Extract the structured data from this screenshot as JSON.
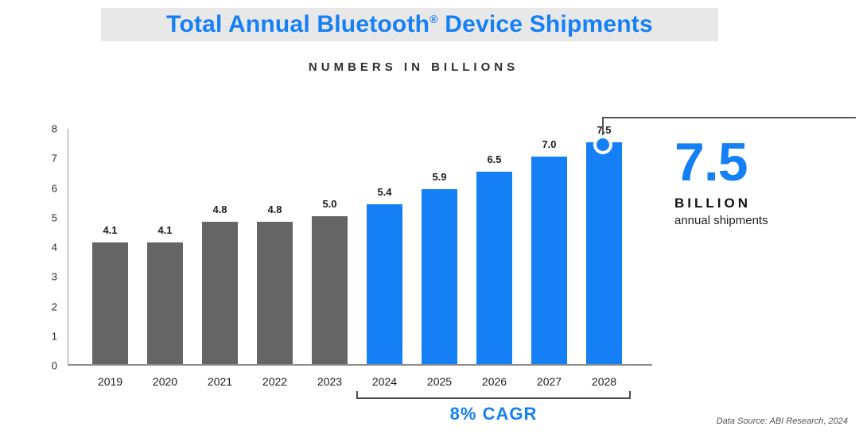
{
  "header": {
    "title_pre": "Total Annual Bluetooth",
    "title_sup": "®",
    "title_post": " Device Shipments",
    "subtitle": "NUMBERS IN BILLIONS"
  },
  "chart_data": {
    "type": "bar",
    "title": "Total Annual Bluetooth® Device Shipments",
    "subtitle": "NUMBERS IN BILLIONS",
    "units": "billions",
    "categories": [
      "2019",
      "2020",
      "2021",
      "2022",
      "2023",
      "2024",
      "2025",
      "2026",
      "2027",
      "2028"
    ],
    "values": [
      4.1,
      4.1,
      4.8,
      4.8,
      5.0,
      5.4,
      5.9,
      6.5,
      7.0,
      7.5
    ],
    "xlabel": "",
    "ylabel": "",
    "ylim": [
      0,
      8
    ],
    "yticks": [
      0,
      1,
      2,
      3,
      4,
      5,
      6,
      7,
      8
    ],
    "grid": false,
    "legend": false,
    "group_split_index": 5,
    "series_groups": [
      {
        "name": "historical",
        "range": [
          "2019",
          "2023"
        ],
        "color": "#656565"
      },
      {
        "name": "forecast",
        "range": [
          "2024",
          "2028"
        ],
        "color": "#1580f5"
      }
    ],
    "annotations": {
      "cagr_label": "8% CAGR",
      "cagr_span": [
        "2024",
        "2028"
      ],
      "callout_value": "7.5",
      "callout_unit": "BILLION",
      "callout_caption": "annual shipments"
    }
  },
  "callout": {
    "value": "7.5",
    "unit": "BILLION",
    "caption": "annual shipments"
  },
  "footer": {
    "source": "Data Source: ABI Research, 2024"
  },
  "colors": {
    "accent_blue": "#1580f5",
    "bar_gray": "#656565",
    "title_bg": "#e8e8e8"
  }
}
